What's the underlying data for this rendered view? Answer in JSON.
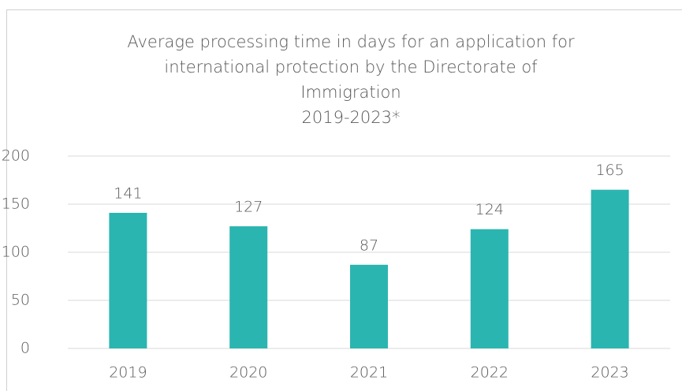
{
  "chart_data": {
    "type": "bar",
    "title": [
      "Average processing time in days for an application for",
      "international protection by the Directorate of",
      "Immigration",
      "2019-2023*"
    ],
    "categories": [
      "2019",
      "2020",
      "2021",
      "2022",
      "2023"
    ],
    "values": [
      141,
      127,
      87,
      124,
      165
    ],
    "color": "#2bb5b0",
    "ylim": [
      0,
      200
    ],
    "yticks": [
      0,
      50,
      100,
      150,
      200
    ],
    "grid": true
  }
}
